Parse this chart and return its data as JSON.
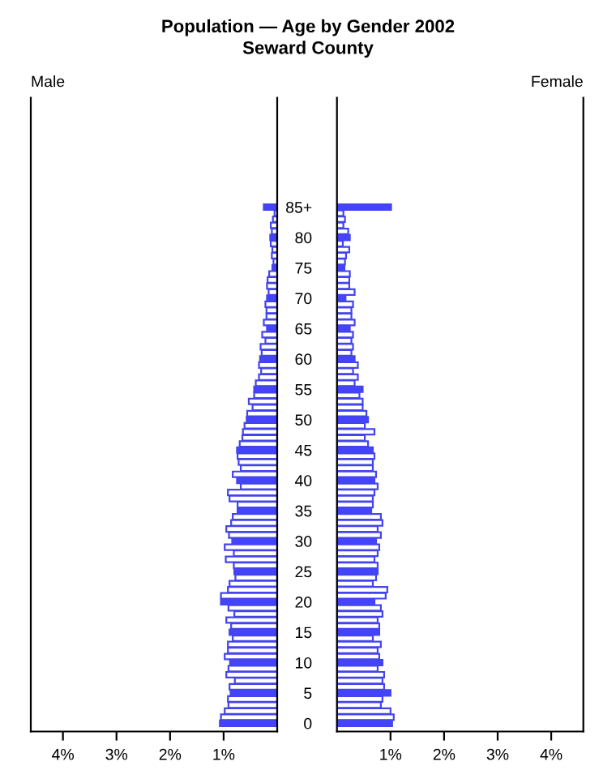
{
  "chart_data": [
    {
      "type": "bar",
      "orientation": "horizontal",
      "title": "Population — Age by Gender 2002",
      "subtitle": "Seward County",
      "categories": [
        null,
        null,
        null,
        null,
        null,
        null,
        null,
        null,
        null,
        null,
        null,
        null,
        null,
        null,
        null,
        null,
        null,
        null,
        null,
        null,
        null,
        null,
        null,
        null,
        null,
        null,
        null,
        null,
        null,
        null,
        null,
        null,
        null,
        null,
        null,
        null,
        null,
        null,
        null,
        null,
        null,
        null,
        null,
        null,
        null,
        null,
        null,
        null,
        null,
        null,
        null,
        null,
        null,
        null,
        null,
        null,
        null,
        null,
        null,
        null,
        null,
        null,
        null,
        null,
        null,
        null,
        null,
        null,
        null,
        null,
        null,
        null,
        null,
        null,
        null,
        null,
        null,
        null,
        null,
        null,
        null,
        null,
        null,
        null,
        null,
        null
      ],
      "series": [
        {
          "name": "Male",
          "color": "#4444ee",
          "colors": [
            "#4444ff",
            "#ffffff",
            "#ffffff",
            "#ffffff",
            "#ffffff",
            "#4444ff",
            "#ffffff",
            "#ffffff",
            "#ffffff",
            "#ffffff",
            "#4444ff",
            "#ffffff",
            "#ffffff",
            "#ffffff",
            "#ffffff",
            "#4444ff",
            "#ffffff",
            "#ffffff",
            "#ffffff",
            "#ffffff",
            "#4444ff",
            "#ffffff",
            "#ffffff",
            "#ffffff",
            "#ffffff",
            "#4444ff",
            "#ffffff",
            "#ffffff",
            "#ffffff",
            "#ffffff",
            "#4444ff",
            "#ffffff",
            "#ffffff",
            "#ffffff",
            "#ffffff",
            "#4444ff",
            "#ffffff",
            "#ffffff",
            "#ffffff",
            "#ffffff",
            "#4444ff",
            "#ffffff",
            "#ffffff",
            "#ffffff",
            "#ffffff",
            "#4444ff",
            "#ffffff",
            "#ffffff",
            "#ffffff",
            "#ffffff",
            "#4444ff",
            "#ffffff",
            "#ffffff",
            "#ffffff",
            "#ffffff",
            "#4444ff",
            "#ffffff",
            "#ffffff",
            "#ffffff",
            "#ffffff",
            "#4444ff",
            "#ffffff",
            "#ffffff",
            "#ffffff",
            "#ffffff",
            "#4444ff",
            "#ffffff",
            "#ffffff",
            "#ffffff",
            "#ffffff",
            "#4444ff",
            "#ffffff",
            "#ffffff",
            "#ffffff",
            "#ffffff",
            "#4444ff",
            "#ffffff",
            "#ffffff",
            "#ffffff",
            "#ffffff",
            "#4444ff",
            "#ffffff",
            "#ffffff",
            "#ffffff",
            "#ffffff",
            "#4444ff"
          ],
          "values": [
            0.25,
            0.05,
            0.08,
            0.12,
            0.1,
            0.13,
            0.12,
            0.09,
            0.1,
            0.07,
            0.09,
            0.15,
            0.18,
            0.19,
            0.16,
            0.19,
            0.22,
            0.2,
            0.2,
            0.25,
            0.19,
            0.28,
            0.22,
            0.31,
            0.29,
            0.32,
            0.34,
            0.3,
            0.34,
            0.4,
            0.43,
            0.43,
            0.53,
            0.46,
            0.56,
            0.57,
            0.61,
            0.64,
            0.65,
            0.7,
            0.75,
            0.74,
            0.72,
            0.68,
            0.83,
            0.75,
            0.68,
            0.92,
            0.89,
            0.74,
            0.74,
            0.83,
            0.86,
            0.95,
            0.9,
            0.84,
            0.98,
            0.81,
            0.96,
            0.81,
            0.8,
            0.78,
            0.89,
            0.92,
            1.05,
            1.05,
            0.91,
            0.8,
            0.95,
            0.86,
            0.89,
            0.83,
            0.92,
            0.92,
            0.98,
            0.88,
            0.91,
            0.95,
            0.79,
            0.89,
            0.87,
            0.92,
            0.91,
            0.98,
            1.05,
            1.07
          ]
        }
      ],
      "xlim": [
        4.6,
        0
      ],
      "xticks": [
        {
          "value": 4,
          "label": "4%"
        },
        {
          "value": 3,
          "label": "3%"
        },
        {
          "value": 2,
          "label": "2%"
        },
        {
          "value": 1,
          "label": "1%"
        }
      ],
      "tick_labels": "x",
      "grid": false,
      "legend": false
    },
    {
      "type": "bar",
      "orientation": "horizontal",
      "categories": [
        "85+",
        null,
        null,
        null,
        null,
        "80",
        null,
        null,
        null,
        null,
        "75",
        null,
        null,
        null,
        null,
        "70",
        null,
        null,
        null,
        null,
        "65",
        null,
        null,
        null,
        null,
        "60",
        null,
        null,
        null,
        null,
        "55",
        null,
        null,
        null,
        null,
        "50",
        null,
        null,
        null,
        null,
        "45",
        null,
        null,
        null,
        null,
        "40",
        null,
        null,
        null,
        null,
        "35",
        null,
        null,
        null,
        null,
        "30",
        null,
        null,
        null,
        null,
        "25",
        null,
        null,
        null,
        null,
        "20",
        null,
        null,
        null,
        null,
        "15",
        null,
        null,
        null,
        null,
        "10",
        null,
        null,
        null,
        null,
        "5",
        null,
        null,
        null,
        null,
        "0"
      ],
      "series": [
        {
          "name": "Female",
          "color": "#4444ee",
          "colors": [
            "#4444ff",
            "#ffffff",
            "#ffffff",
            "#ffffff",
            "#ffffff",
            "#4444ff",
            "#ffffff",
            "#ffffff",
            "#ffffff",
            "#ffffff",
            "#4444ff",
            "#ffffff",
            "#ffffff",
            "#ffffff",
            "#ffffff",
            "#4444ff",
            "#ffffff",
            "#ffffff",
            "#ffffff",
            "#ffffff",
            "#4444ff",
            "#ffffff",
            "#ffffff",
            "#ffffff",
            "#ffffff",
            "#4444ff",
            "#ffffff",
            "#ffffff",
            "#ffffff",
            "#ffffff",
            "#4444ff",
            "#ffffff",
            "#ffffff",
            "#ffffff",
            "#ffffff",
            "#4444ff",
            "#ffffff",
            "#ffffff",
            "#ffffff",
            "#ffffff",
            "#4444ff",
            "#ffffff",
            "#ffffff",
            "#ffffff",
            "#ffffff",
            "#4444ff",
            "#ffffff",
            "#ffffff",
            "#ffffff",
            "#ffffff",
            "#4444ff",
            "#ffffff",
            "#ffffff",
            "#ffffff",
            "#ffffff",
            "#4444ff",
            "#ffffff",
            "#ffffff",
            "#ffffff",
            "#ffffff",
            "#4444ff",
            "#ffffff",
            "#ffffff",
            "#ffffff",
            "#ffffff",
            "#4444ff",
            "#ffffff",
            "#ffffff",
            "#ffffff",
            "#ffffff",
            "#4444ff",
            "#ffffff",
            "#ffffff",
            "#ffffff",
            "#ffffff",
            "#4444ff",
            "#ffffff",
            "#ffffff",
            "#ffffff",
            "#ffffff",
            "#4444ff",
            "#ffffff",
            "#ffffff",
            "#ffffff",
            "#ffffff",
            "#4444ff"
          ],
          "values": [
            1.01,
            0.12,
            0.15,
            0.12,
            0.21,
            0.24,
            0.11,
            0.23,
            0.17,
            0.15,
            0.14,
            0.24,
            0.23,
            0.23,
            0.33,
            0.16,
            0.3,
            0.27,
            0.27,
            0.33,
            0.24,
            0.3,
            0.27,
            0.3,
            0.27,
            0.33,
            0.39,
            0.3,
            0.39,
            0.33,
            0.48,
            0.42,
            0.48,
            0.48,
            0.55,
            0.58,
            0.52,
            0.7,
            0.52,
            0.58,
            0.67,
            0.7,
            0.67,
            0.67,
            0.73,
            0.7,
            0.76,
            0.7,
            0.67,
            0.67,
            0.64,
            0.82,
            0.85,
            0.76,
            0.82,
            0.73,
            0.79,
            0.76,
            0.7,
            0.76,
            0.76,
            0.73,
            0.67,
            0.94,
            0.91,
            0.7,
            0.82,
            0.85,
            0.76,
            0.79,
            0.79,
            0.67,
            0.82,
            0.76,
            0.79,
            0.85,
            0.76,
            0.88,
            0.85,
            0.88,
            1.0,
            0.85,
            0.82,
            1.0,
            1.06,
            1.03
          ]
        }
      ],
      "xlim": [
        0,
        4.6
      ],
      "xticks": [
        {
          "value": 1,
          "label": "1%"
        },
        {
          "value": 2,
          "label": "2%"
        },
        {
          "value": 3,
          "label": "3%"
        },
        {
          "value": 4,
          "label": "4%"
        }
      ],
      "grid": false,
      "legend": false
    }
  ]
}
